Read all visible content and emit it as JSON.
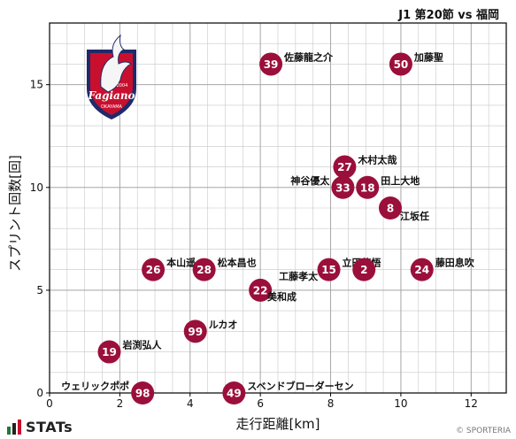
{
  "header": {
    "title": "J1 第20節 vs 福岡"
  },
  "footer": {
    "brand": "STATs",
    "copyright": "© SPORTERIA"
  },
  "team_logo": {
    "text": "Fagiano",
    "year": "2004",
    "city": "OKAYAMA",
    "icon": "pheasant-crest-icon"
  },
  "colors": {
    "marker": "#9b0f3b",
    "marker_text": "#ffffff",
    "grid": "#c8c8c8",
    "axis": "#000000",
    "brand_red": "#c8102e",
    "brand_navy": "#1f2a6b",
    "stats_green": "#1b7a3a"
  },
  "chart_data": {
    "type": "scatter",
    "xlabel": "走行距離[km]",
    "ylabel": "スプリント回数[回]",
    "xlim": [
      0,
      13
    ],
    "ylim": [
      0,
      18
    ],
    "xticks": [
      0,
      2,
      4,
      6,
      8,
      10,
      12
    ],
    "yticks": [
      0,
      5,
      10,
      15
    ],
    "grid": true,
    "points": [
      {
        "number": "39",
        "name": "佐藤龍之介",
        "x": 6.3,
        "y": 16,
        "label_pos": "right"
      },
      {
        "number": "50",
        "name": "加藤聖",
        "x": 10.0,
        "y": 16,
        "label_pos": "right"
      },
      {
        "number": "27",
        "name": "木村太哉",
        "x": 8.4,
        "y": 11,
        "label_pos": "right"
      },
      {
        "number": "33",
        "name": "神谷優太",
        "x": 8.35,
        "y": 10,
        "label_pos": "left"
      },
      {
        "number": "18",
        "name": "田上大地",
        "x": 9.05,
        "y": 10,
        "label_pos": "right"
      },
      {
        "number": "8",
        "name": "江坂任",
        "x": 9.7,
        "y": 9,
        "label_pos": "below-right"
      },
      {
        "number": "26",
        "name": "本山遥",
        "x": 2.95,
        "y": 6,
        "label_pos": "right"
      },
      {
        "number": "28",
        "name": "松本昌也",
        "x": 4.4,
        "y": 6,
        "label_pos": "right"
      },
      {
        "number": "15",
        "name": "立田悠悟",
        "x": 7.95,
        "y": 6,
        "label_pos": "right"
      },
      {
        "number": "2",
        "name": "",
        "x": 8.95,
        "y": 6,
        "label_pos": "none"
      },
      {
        "number": "24",
        "name": "藤田息吹",
        "x": 10.6,
        "y": 6,
        "label_pos": "right"
      },
      {
        "number": "22",
        "name": "工藤孝太",
        "x": 6.0,
        "y": 5,
        "label_pos": "above-right"
      },
      {
        "number": "",
        "name": "美和成",
        "x": 6.35,
        "y": 4.7,
        "label_pos": "label-only"
      },
      {
        "number": "99",
        "name": "ルカオ",
        "x": 4.15,
        "y": 3,
        "label_pos": "right"
      },
      {
        "number": "19",
        "name": "岩渕弘人",
        "x": 1.7,
        "y": 2,
        "label_pos": "right"
      },
      {
        "number": "98",
        "name": "ウェリックポポ",
        "x": 2.65,
        "y": 0,
        "label_pos": "left"
      },
      {
        "number": "49",
        "name": "スベンドブローダーセン",
        "x": 5.25,
        "y": 0,
        "label_pos": "right"
      }
    ]
  }
}
